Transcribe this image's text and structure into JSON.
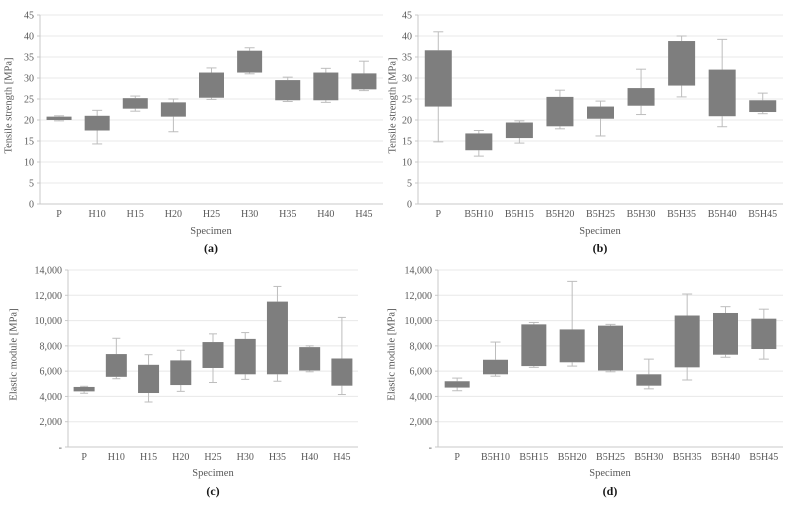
{
  "figure_background": "#ffffff",
  "colors": {
    "box_fill": "#7e7e7e",
    "whisker": "#bdbdbd",
    "gridline": "#e8e8e8",
    "axis": "#c9c9c9",
    "tick_text": "#595959",
    "label_text": "#595959",
    "caption_text": "#171717"
  },
  "chart_data": [
    {
      "id": "a",
      "type": "box",
      "caption": "(a)",
      "xlabel": "Specimen",
      "ylabel": "Tensile strength [MPa]",
      "ylim": [
        0,
        45
      ],
      "ytick_step": 5,
      "ytick_labels": [
        "0",
        "5",
        "10",
        "15",
        "20",
        "25",
        "30",
        "35",
        "40",
        "45"
      ],
      "grid": true,
      "legend": "none",
      "categories": [
        "P",
        "H10",
        "H15",
        "H20",
        "H25",
        "H30",
        "H35",
        "H40",
        "H45"
      ],
      "boxes": [
        {
          "category": "P",
          "whisker_low": 19.8,
          "box_low": 20.0,
          "box_high": 20.8,
          "whisker_high": 21.0
        },
        {
          "category": "H10",
          "whisker_low": 14.3,
          "box_low": 17.5,
          "box_high": 21.0,
          "whisker_high": 22.3
        },
        {
          "category": "H15",
          "whisker_low": 22.1,
          "box_low": 22.7,
          "box_high": 25.2,
          "whisker_high": 25.7
        },
        {
          "category": "H20",
          "whisker_low": 17.2,
          "box_low": 20.8,
          "box_high": 24.2,
          "whisker_high": 25.0
        },
        {
          "category": "H25",
          "whisker_low": 24.9,
          "box_low": 25.3,
          "box_high": 31.3,
          "whisker_high": 32.4
        },
        {
          "category": "H30",
          "whisker_low": 31.0,
          "box_low": 31.3,
          "box_high": 36.5,
          "whisker_high": 37.2
        },
        {
          "category": "H35",
          "whisker_low": 24.4,
          "box_low": 24.7,
          "box_high": 29.5,
          "whisker_high": 30.2
        },
        {
          "category": "H40",
          "whisker_low": 24.2,
          "box_low": 24.7,
          "box_high": 31.3,
          "whisker_high": 32.3
        },
        {
          "category": "H45",
          "whisker_low": 27.0,
          "box_low": 27.3,
          "box_high": 31.1,
          "whisker_high": 34.0
        }
      ]
    },
    {
      "id": "b",
      "type": "box",
      "caption": "(b)",
      "xlabel": "Specimen",
      "ylabel": "Tensile strength [MPa]",
      "ylim": [
        0,
        45
      ],
      "ytick_step": 5,
      "ytick_labels": [
        "0",
        "5",
        "10",
        "15",
        "20",
        "25",
        "30",
        "35",
        "40",
        "45"
      ],
      "grid": true,
      "legend": "none",
      "categories": [
        "P",
        "B5H10",
        "B5H15",
        "B5H20",
        "B5H25",
        "B5H30",
        "B5H35",
        "B5H40",
        "B5H45"
      ],
      "boxes": [
        {
          "category": "P",
          "whisker_low": 14.8,
          "box_low": 23.2,
          "box_high": 36.6,
          "whisker_high": 41.0
        },
        {
          "category": "B5H10",
          "whisker_low": 11.4,
          "box_low": 12.8,
          "box_high": 16.8,
          "whisker_high": 17.5
        },
        {
          "category": "B5H15",
          "whisker_low": 14.5,
          "box_low": 15.7,
          "box_high": 19.4,
          "whisker_high": 19.8
        },
        {
          "category": "B5H20",
          "whisker_low": 17.9,
          "box_low": 18.5,
          "box_high": 25.5,
          "whisker_high": 27.1
        },
        {
          "category": "B5H25",
          "whisker_low": 16.2,
          "box_low": 20.3,
          "box_high": 23.2,
          "whisker_high": 24.5
        },
        {
          "category": "B5H30",
          "whisker_low": 21.3,
          "box_low": 23.4,
          "box_high": 27.6,
          "whisker_high": 32.1
        },
        {
          "category": "B5H35",
          "whisker_low": 25.5,
          "box_low": 28.2,
          "box_high": 38.8,
          "whisker_high": 40.0
        },
        {
          "category": "B5H40",
          "whisker_low": 18.4,
          "box_low": 20.9,
          "box_high": 32.0,
          "whisker_high": 39.2
        },
        {
          "category": "B5H45",
          "whisker_low": 21.5,
          "box_low": 21.9,
          "box_high": 24.7,
          "whisker_high": 26.4
        }
      ]
    },
    {
      "id": "c",
      "type": "box",
      "caption": "(c)",
      "xlabel": "Specimen",
      "ylabel": "Elastic module [MPa]",
      "ylim": [
        0,
        14000
      ],
      "ytick_step": 2000,
      "ytick_labels": [
        "-",
        "2,000",
        "4,000",
        "6,000",
        "8,000",
        "10,000",
        "12,000",
        "14,000"
      ],
      "grid": true,
      "legend": "none",
      "categories": [
        "P",
        "H10",
        "H15",
        "H20",
        "H25",
        "H30",
        "H35",
        "H40",
        "H45"
      ],
      "boxes": [
        {
          "category": "P",
          "whisker_low": 4250,
          "box_low": 4400,
          "box_high": 4750,
          "whisker_high": 4800
        },
        {
          "category": "H10",
          "whisker_low": 5400,
          "box_low": 5550,
          "box_high": 7350,
          "whisker_high": 8600
        },
        {
          "category": "H15",
          "whisker_low": 3560,
          "box_low": 4270,
          "box_high": 6500,
          "whisker_high": 7300
        },
        {
          "category": "H20",
          "whisker_low": 4400,
          "box_low": 4900,
          "box_high": 6850,
          "whisker_high": 7650
        },
        {
          "category": "H25",
          "whisker_low": 5100,
          "box_low": 6250,
          "box_high": 8300,
          "whisker_high": 8950
        },
        {
          "category": "H30",
          "whisker_low": 5350,
          "box_low": 5750,
          "box_high": 8550,
          "whisker_high": 9050
        },
        {
          "category": "H35",
          "whisker_low": 5200,
          "box_low": 5750,
          "box_high": 11500,
          "whisker_high": 12700
        },
        {
          "category": "H40",
          "whisker_low": 5950,
          "box_low": 6050,
          "box_high": 7900,
          "whisker_high": 8000
        },
        {
          "category": "H45",
          "whisker_low": 4150,
          "box_low": 4850,
          "box_high": 7000,
          "whisker_high": 10250
        }
      ]
    },
    {
      "id": "d",
      "type": "box",
      "caption": "(d)",
      "xlabel": "Specimen",
      "ylabel": "Elastic module [MPa]",
      "ylim": [
        0,
        14000
      ],
      "ytick_step": 2000,
      "ytick_labels": [
        "-",
        "2,000",
        "4,000",
        "6,000",
        "8,000",
        "10,000",
        "12,000",
        "14,000"
      ],
      "grid": true,
      "legend": "none",
      "categories": [
        "P",
        "B5H10",
        "B5H15",
        "B5H20",
        "B5H25",
        "B5H30",
        "B5H35",
        "B5H40",
        "B5H45"
      ],
      "boxes": [
        {
          "category": "P",
          "whisker_low": 4450,
          "box_low": 4700,
          "box_high": 5200,
          "whisker_high": 5450
        },
        {
          "category": "B5H10",
          "whisker_low": 5600,
          "box_low": 5750,
          "box_high": 6900,
          "whisker_high": 8300
        },
        {
          "category": "B5H15",
          "whisker_low": 6300,
          "box_low": 6400,
          "box_high": 9700,
          "whisker_high": 9850
        },
        {
          "category": "B5H20",
          "whisker_low": 6400,
          "box_low": 6700,
          "box_high": 9300,
          "whisker_high": 13100
        },
        {
          "category": "B5H25",
          "whisker_low": 5950,
          "box_low": 6050,
          "box_high": 9600,
          "whisker_high": 9700
        },
        {
          "category": "B5H30",
          "whisker_low": 4600,
          "box_low": 4850,
          "box_high": 5750,
          "whisker_high": 6950
        },
        {
          "category": "B5H35",
          "whisker_low": 5300,
          "box_low": 6300,
          "box_high": 10400,
          "whisker_high": 12100
        },
        {
          "category": "B5H40",
          "whisker_low": 7100,
          "box_low": 7300,
          "box_high": 10600,
          "whisker_high": 11100
        },
        {
          "category": "B5H45",
          "whisker_low": 6950,
          "box_low": 7750,
          "box_high": 10150,
          "whisker_high": 10900
        }
      ]
    }
  ]
}
